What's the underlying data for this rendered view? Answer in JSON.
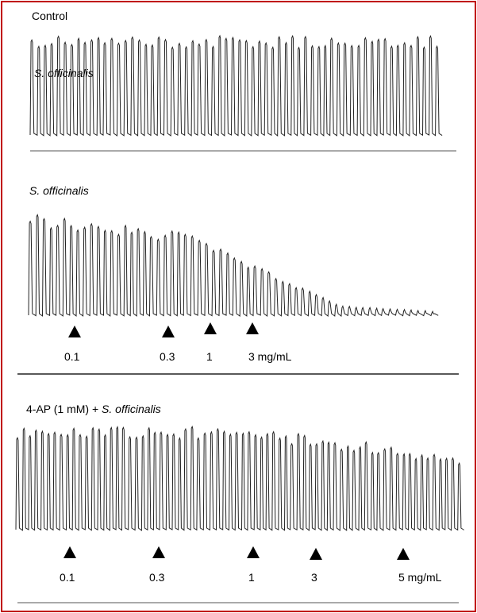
{
  "panels": [
    {
      "id": "control",
      "label": "Control",
      "overlay_label": "S. officinalis",
      "arrows": []
    },
    {
      "id": "officinalis",
      "label": "S. officinalis",
      "arrows": [
        {
          "dose": "0.1"
        },
        {
          "dose": "0.3"
        },
        {
          "dose": "1"
        },
        {
          "dose": "3 mg/mL"
        }
      ]
    },
    {
      "id": "4ap",
      "label_prefix": "4-AP (1 mM) + ",
      "label_species": "S. officinalis",
      "arrows": [
        {
          "dose": "0.1"
        },
        {
          "dose": "0.3"
        },
        {
          "dose": "1"
        },
        {
          "dose": "3"
        },
        {
          "dose": "5  mg/mL"
        }
      ]
    }
  ],
  "colors": {
    "border": "#c00000",
    "trace": "#222222",
    "divider": "#555555"
  }
}
